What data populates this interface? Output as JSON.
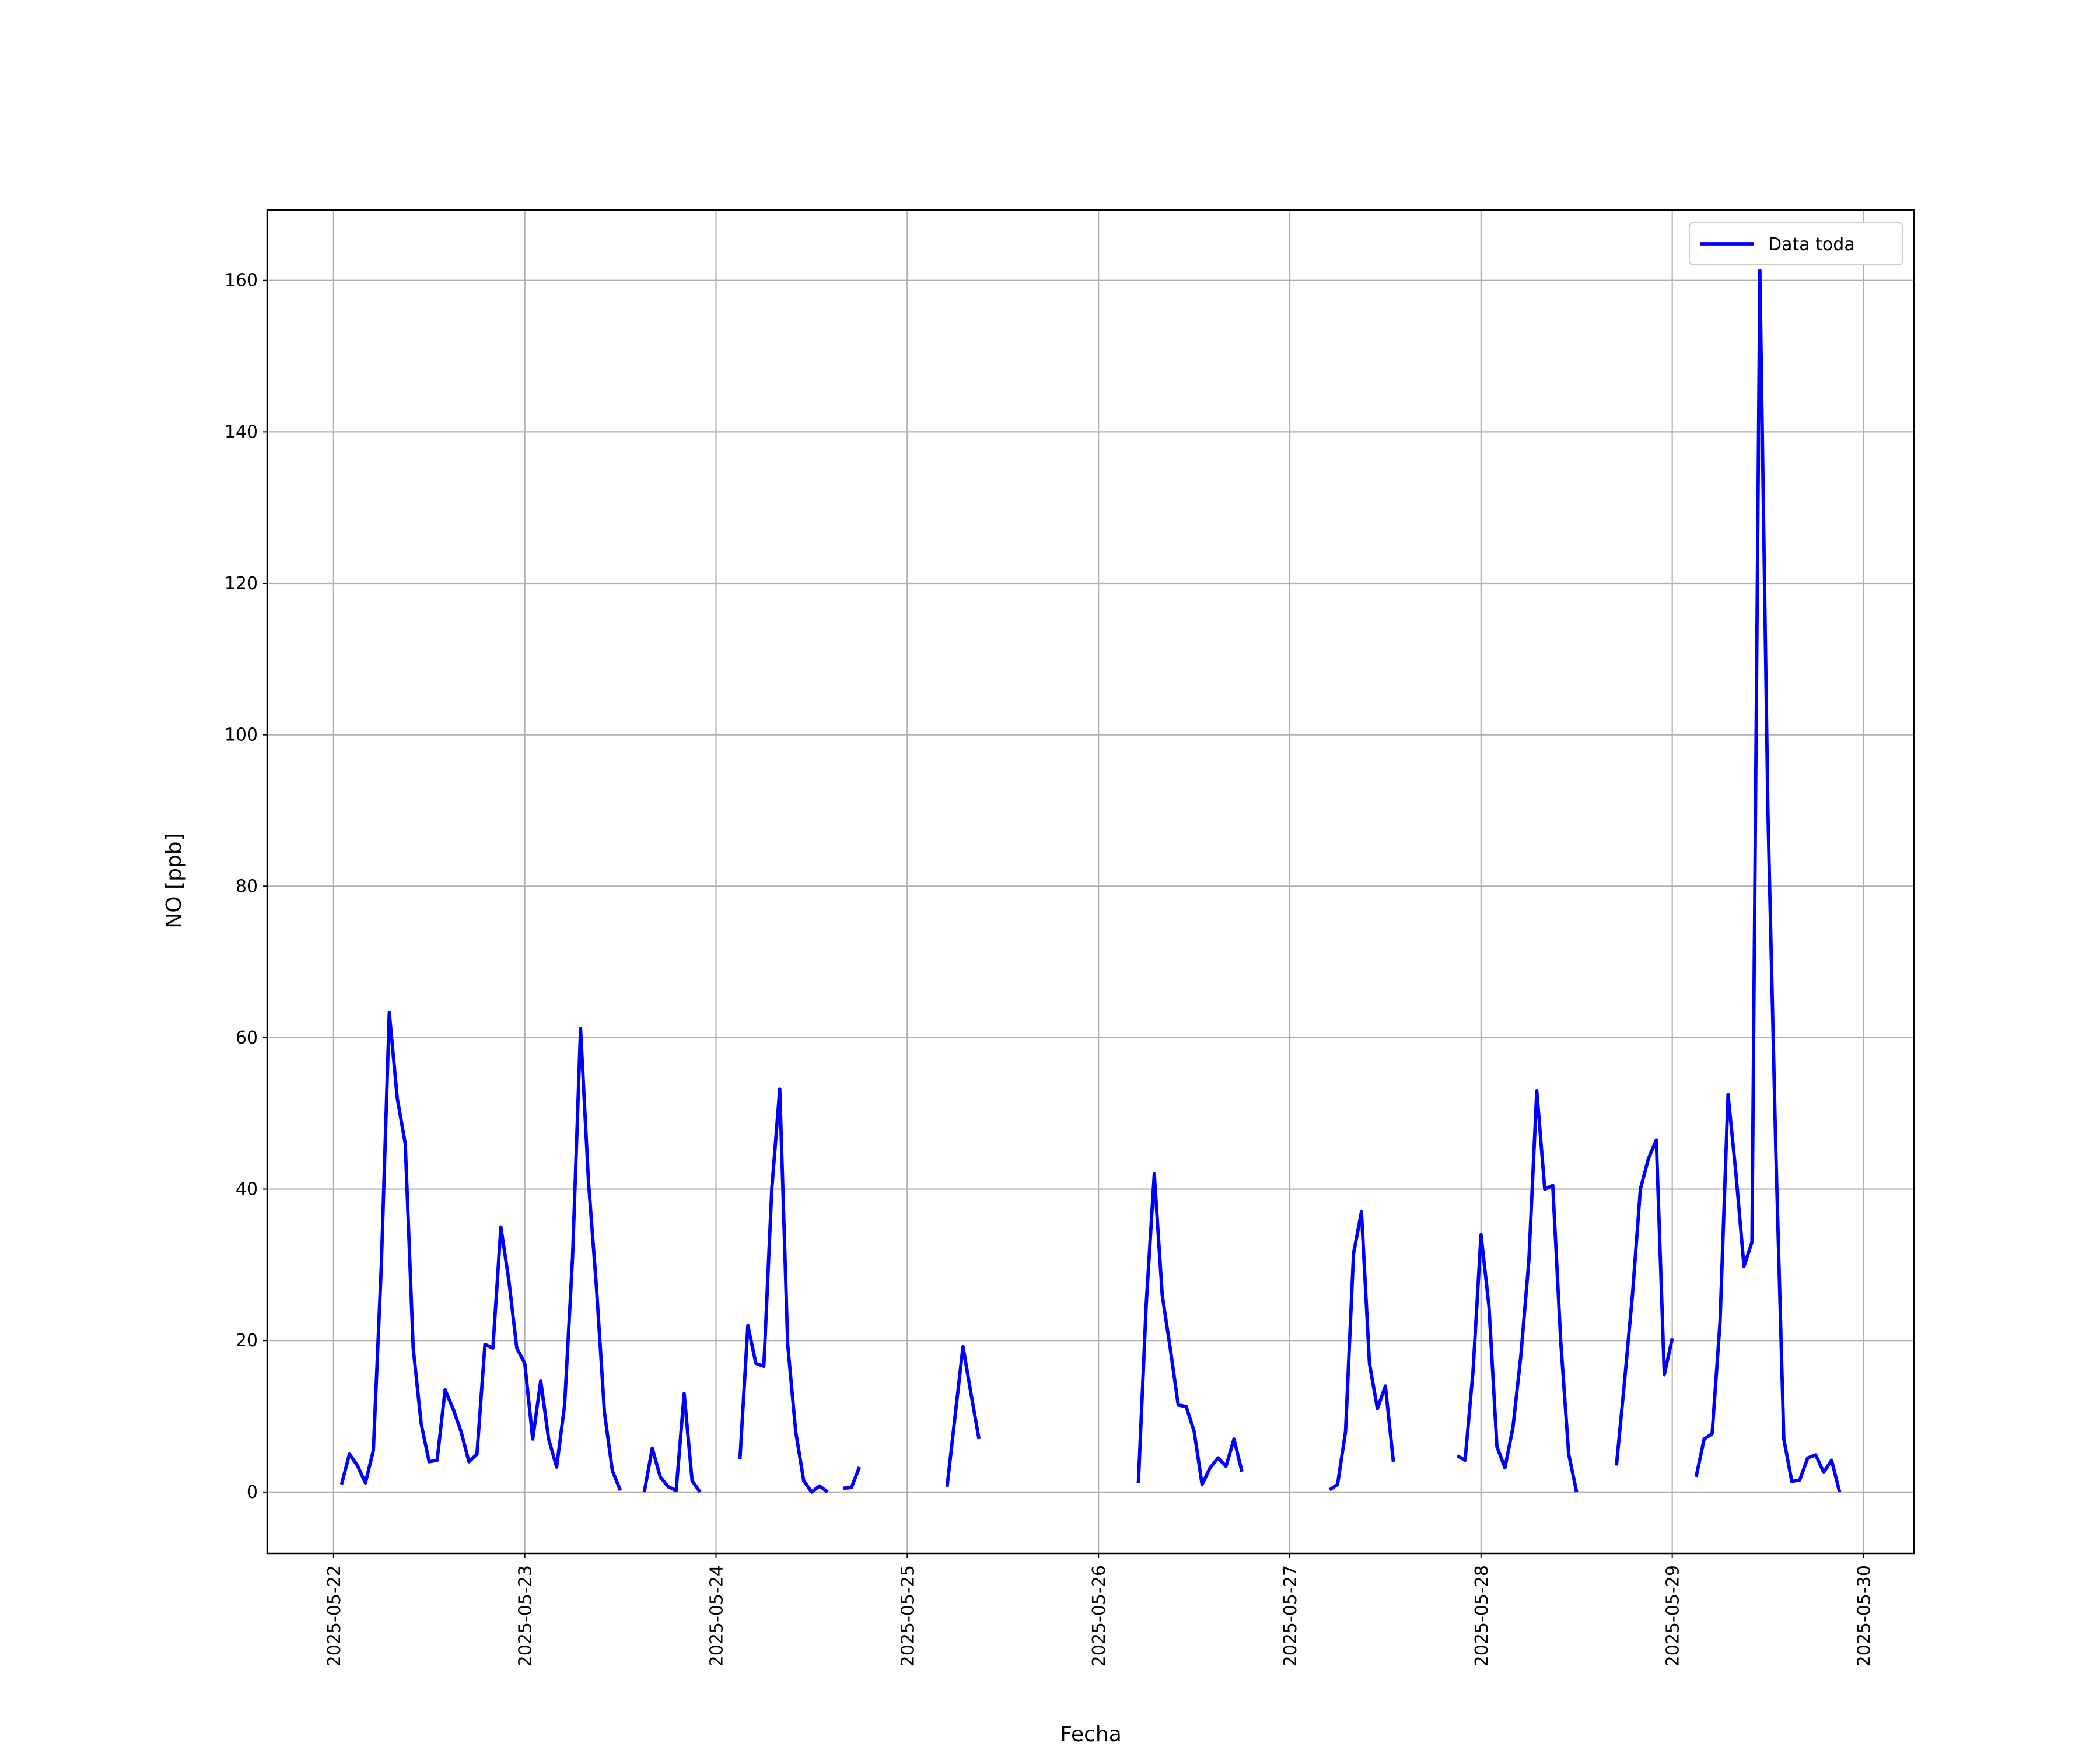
{
  "chart_data": {
    "type": "line",
    "xlabel": "Fecha",
    "ylabel": "NO [ppb]",
    "x": [
      "2025-05-22T01:00",
      "2025-05-22T02:00",
      "2025-05-22T03:00",
      "2025-05-22T04:00",
      "2025-05-22T05:00",
      "2025-05-22T06:00",
      "2025-05-22T07:00",
      "2025-05-22T08:00",
      "2025-05-22T09:00",
      "2025-05-22T10:00",
      "2025-05-22T11:00",
      "2025-05-22T12:00",
      "2025-05-22T13:00",
      "2025-05-22T14:00",
      "2025-05-22T15:00",
      "2025-05-22T16:00",
      "2025-05-22T17:00",
      "2025-05-22T18:00",
      "2025-05-22T19:00",
      "2025-05-22T20:00",
      "2025-05-22T21:00",
      "2025-05-22T22:00",
      "2025-05-22T23:00",
      "2025-05-23T00:00",
      "2025-05-23T01:00",
      "2025-05-23T02:00",
      "2025-05-23T03:00",
      "2025-05-23T04:00",
      "2025-05-23T05:00",
      "2025-05-23T06:00",
      "2025-05-23T07:00",
      "2025-05-23T08:00",
      "2025-05-23T09:00",
      "2025-05-23T10:00",
      "2025-05-23T11:00",
      "2025-05-23T12:00",
      "2025-05-23T13:00",
      "2025-05-23T15:00",
      "2025-05-23T16:00",
      "2025-05-23T17:00",
      "2025-05-23T18:00",
      "2025-05-23T19:00",
      "2025-05-23T20:00",
      "2025-05-23T21:00",
      "2025-05-23T22:00",
      "2025-05-23T23:00",
      "2025-05-24T03:00",
      "2025-05-24T04:00",
      "2025-05-24T05:00",
      "2025-05-24T06:00",
      "2025-05-24T07:00",
      "2025-05-24T08:00",
      "2025-05-24T09:00",
      "2025-05-24T10:00",
      "2025-05-24T11:00",
      "2025-05-24T12:00",
      "2025-05-24T13:00",
      "2025-05-24T14:00",
      "2025-05-24T15:00",
      "2025-05-24T16:00",
      "2025-05-24T17:00",
      "2025-05-24T18:00",
      "2025-05-24T19:00",
      "2025-05-25T05:00",
      "2025-05-25T06:00",
      "2025-05-25T07:00",
      "2025-05-25T08:00",
      "2025-05-25T09:00",
      "2025-05-25T10:00",
      "2025-05-26T05:00",
      "2025-05-26T06:00",
      "2025-05-26T07:00",
      "2025-05-26T08:00",
      "2025-05-26T09:00",
      "2025-05-26T10:00",
      "2025-05-26T11:00",
      "2025-05-26T12:00",
      "2025-05-26T13:00",
      "2025-05-26T14:00",
      "2025-05-26T15:00",
      "2025-05-26T16:00",
      "2025-05-26T17:00",
      "2025-05-26T18:00",
      "2025-05-26T19:00",
      "2025-05-27T05:00",
      "2025-05-27T06:00",
      "2025-05-27T07:00",
      "2025-05-27T08:00",
      "2025-05-27T09:00",
      "2025-05-27T10:00",
      "2025-05-27T11:00",
      "2025-05-27T12:00",
      "2025-05-27T13:00",
      "2025-05-27T14:00",
      "2025-05-27T21:00",
      "2025-05-27T22:00",
      "2025-05-27T23:00",
      "2025-05-28T00:00",
      "2025-05-28T01:00",
      "2025-05-28T02:00",
      "2025-05-28T03:00",
      "2025-05-28T04:00",
      "2025-05-28T05:00",
      "2025-05-28T06:00",
      "2025-05-28T07:00",
      "2025-05-28T08:00",
      "2025-05-28T09:00",
      "2025-05-28T10:00",
      "2025-05-28T11:00",
      "2025-05-28T12:00",
      "2025-05-28T13:00",
      "2025-05-28T17:00",
      "2025-05-28T18:00",
      "2025-05-28T19:00",
      "2025-05-28T20:00",
      "2025-05-28T21:00",
      "2025-05-28T22:00",
      "2025-05-28T23:00",
      "2025-05-29T00:00",
      "2025-05-29T01:00",
      "2025-05-29T03:00",
      "2025-05-29T04:00",
      "2025-05-29T05:00",
      "2025-05-29T06:00",
      "2025-05-29T07:00",
      "2025-05-29T08:00",
      "2025-05-29T09:00",
      "2025-05-29T10:00",
      "2025-05-29T11:00",
      "2025-05-29T12:00",
      "2025-05-29T13:00",
      "2025-05-29T14:00",
      "2025-05-29T15:00",
      "2025-05-29T16:00",
      "2025-05-29T17:00",
      "2025-05-29T18:00",
      "2025-05-29T19:00",
      "2025-05-29T20:00",
      "2025-05-29T21:00"
    ],
    "series": [
      {
        "name": "Data toda",
        "color": "#0000ff",
        "values": [
          1,
          5,
          3.5,
          1.2,
          5.5,
          30,
          63.3,
          52,
          46,
          19,
          9,
          4,
          4.2,
          13.5,
          11,
          8,
          4,
          5,
          19.5,
          19,
          35,
          28,
          19,
          17,
          7,
          14.7,
          7,
          3.3,
          11.5,
          31,
          61.2,
          41,
          27,
          10.5,
          2.8,
          0.2,
          null,
          0,
          5.8,
          2,
          0.7,
          0.2,
          13,
          1.5,
          0,
          null,
          4.3,
          22,
          17,
          16.6,
          40,
          53.2,
          19.5,
          8,
          1.5,
          0,
          0.8,
          0,
          null,
          0.5,
          0.6,
          3.3,
          null,
          0.7,
          10,
          19.2,
          13,
          7,
          null,
          1.2,
          25,
          42,
          26,
          19,
          11.5,
          11.3,
          8,
          1,
          3.2,
          4.5,
          3.4,
          7,
          2.7,
          null,
          0.3,
          1,
          8,
          31.5,
          37,
          17,
          11,
          14,
          4,
          null,
          4.8,
          4.2,
          16,
          34,
          24.5,
          6,
          3.2,
          8.5,
          18,
          30.5,
          53,
          40,
          40.5,
          20,
          5,
          0,
          null,
          3.5,
          14.5,
          26,
          40,
          44,
          46.5,
          15.5,
          20.3,
          null,
          2,
          7,
          7.7,
          22.5,
          52.5,
          42,
          29.8,
          33,
          161.3,
          90,
          45,
          7,
          1.4,
          1.6,
          4.5,
          4.9,
          2.6,
          4.2,
          0
        ]
      }
    ],
    "xlim": [
      "2025-05-21T15:40",
      "2025-05-30T06:20"
    ],
    "xticks": [
      "2025-05-22",
      "2025-05-23",
      "2025-05-24",
      "2025-05-25",
      "2025-05-26",
      "2025-05-27",
      "2025-05-28",
      "2025-05-29",
      "2025-05-30"
    ],
    "ylim": [
      -8.1,
      169.3
    ],
    "yticks": [
      0,
      20,
      40,
      60,
      80,
      100,
      120,
      140,
      160
    ],
    "grid": true,
    "legend": "upper right"
  }
}
